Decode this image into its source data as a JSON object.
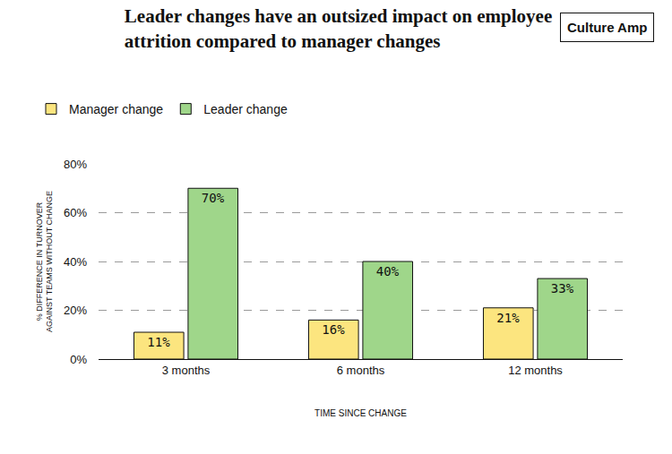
{
  "chart_data": {
    "type": "bar",
    "title": "Leader changes have an outsized impact on employee attrition compared to manager changes",
    "annotations": [
      "Culture Amp"
    ],
    "x_label": "TIME SINCE CHANGE",
    "y_label": "% DIFFERENCE IN TURNOVER AGAINST TEAMS WITHOUT CHANGE",
    "categories": [
      "3 months",
      "6 months",
      "12 months"
    ],
    "series": [
      {
        "name": "Manager change",
        "color": "#fce57f",
        "values": [
          11,
          16,
          21
        ],
        "value_labels": [
          "11%",
          "16%",
          "21%"
        ]
      },
      {
        "name": "Leader change",
        "color": "#9fd68a",
        "values": [
          70,
          40,
          33
        ],
        "value_labels": [
          "70%",
          "40%",
          "33%"
        ]
      }
    ],
    "ylim": [
      0,
      80
    ],
    "yticks": [
      {
        "value": 0,
        "label": "0%"
      },
      {
        "value": 20,
        "label": "20%"
      },
      {
        "value": 40,
        "label": "40%"
      },
      {
        "value": 60,
        "label": "60%"
      },
      {
        "value": 80,
        "label": "80%"
      }
    ],
    "grid": true,
    "legend": "top-left",
    "data_labels": true
  }
}
